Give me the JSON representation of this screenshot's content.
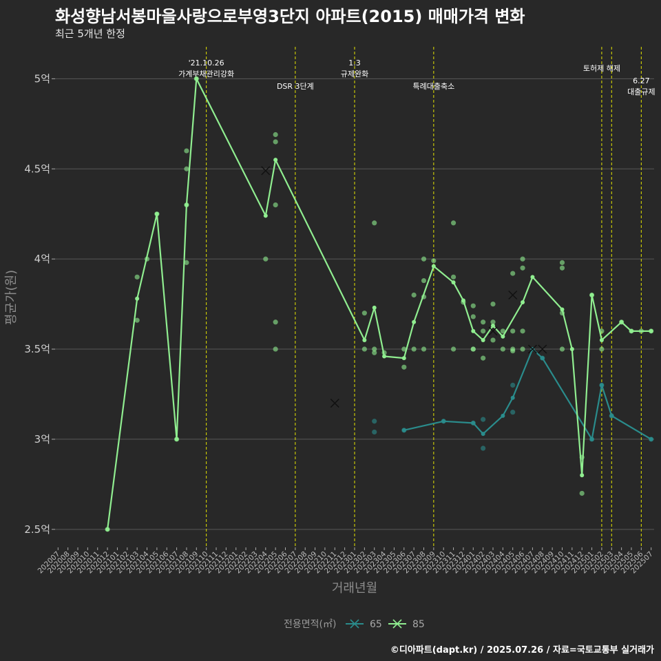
{
  "header": {
    "title": "화성향남서봉마을사랑으로부영3단지 아파트(2015) 매매가격 변화",
    "subtitle": "최근 5개년 한정"
  },
  "footer": {
    "caption": "©디아파트(dapt.kr) / 2025.07.26 / 자료=국토교통부 실거래가"
  },
  "colors": {
    "background": "#282828",
    "grid": "#595959",
    "event_line": "#e6e600",
    "s65": "#2a8c8c",
    "s85": "#90ee90"
  },
  "chart_data": {
    "type": "line",
    "xlabel": "거래년월",
    "ylabel": "평균가(원)",
    "ylim": [
      2.4,
      5.2
    ],
    "y_ticks": [
      {
        "value": 2.5,
        "label": "2.5억"
      },
      {
        "value": 3.0,
        "label": "3억"
      },
      {
        "value": 3.5,
        "label": "3.5억"
      },
      {
        "value": 4.0,
        "label": "4억"
      },
      {
        "value": 4.5,
        "label": "4.5억"
      },
      {
        "value": 5.0,
        "label": "5억"
      }
    ],
    "months": [
      "202007",
      "202008",
      "202009",
      "202010",
      "202011",
      "202012",
      "202101",
      "202102",
      "202103",
      "202104",
      "202105",
      "202106",
      "202107",
      "202108",
      "202109",
      "202110",
      "202111",
      "202112",
      "202201",
      "202202",
      "202203",
      "202204",
      "202205",
      "202206",
      "202207",
      "202208",
      "202209",
      "202210",
      "202211",
      "202212",
      "202301",
      "202302",
      "202303",
      "202304",
      "202305",
      "202306",
      "202307",
      "202308",
      "202309",
      "202310",
      "202311",
      "202312",
      "202401",
      "202402",
      "202403",
      "202404",
      "202405",
      "202406",
      "202407",
      "202408",
      "202409",
      "202410",
      "202411",
      "202412",
      "202501",
      "202502",
      "202503",
      "202504",
      "202505",
      "202506",
      "202507"
    ],
    "events": [
      {
        "month": "202110",
        "text": [
          "'21.10.26",
          "가계부채관리강화"
        ],
        "pos": "high"
      },
      {
        "month": "202207",
        "text": [
          "DSR 3단계"
        ],
        "pos": "low"
      },
      {
        "month": "202301",
        "text": [
          "1.3",
          "규제완화"
        ],
        "pos": "high"
      },
      {
        "month": "202309",
        "text": [
          "특례대출축소"
        ],
        "pos": "low"
      },
      {
        "month": "202502",
        "text": [
          "토허제 해제"
        ],
        "pos": "mid"
      },
      {
        "month": "202503",
        "text": [],
        "pos": "mid"
      },
      {
        "month": "202506",
        "text": [
          "6.27",
          "대출규제"
        ],
        "pos": "low2"
      }
    ],
    "legend": {
      "title": "전용면적(㎡)",
      "items": [
        "65",
        "85"
      ]
    },
    "series": [
      {
        "name": "65",
        "line": [
          {
            "x": 35.0,
            "y": 3.05
          },
          {
            "x": 39.0,
            "y": 3.1
          },
          {
            "x": 42.0,
            "y": 3.09
          },
          {
            "x": 43.0,
            "y": 3.03
          },
          {
            "x": 45.0,
            "y": 3.13
          },
          {
            "x": 46.0,
            "y": 3.23
          },
          {
            "x": 48.0,
            "y": 3.5
          },
          {
            "x": 49.0,
            "y": 3.45
          },
          {
            "x": 54.0,
            "y": 3.0
          },
          {
            "x": 55.0,
            "y": 3.3
          },
          {
            "x": 56.0,
            "y": 3.13
          },
          {
            "x": 60.0,
            "y": 3.0
          }
        ],
        "points": [
          {
            "x": 32.0,
            "y": 3.1
          },
          {
            "x": 32.0,
            "y": 3.04
          },
          {
            "x": 35.0,
            "y": 3.05
          },
          {
            "x": 39.0,
            "y": 3.1
          },
          {
            "x": 42.0,
            "y": 3.09
          },
          {
            "x": 43.0,
            "y": 3.11
          },
          {
            "x": 43.0,
            "y": 2.95
          },
          {
            "x": 46.0,
            "y": 3.3
          },
          {
            "x": 46.0,
            "y": 3.15
          },
          {
            "x": 49.0,
            "y": 3.45
          },
          {
            "x": 54.0,
            "y": 3.0
          },
          {
            "x": 55.0,
            "y": 3.3
          },
          {
            "x": 56.0,
            "y": 3.13
          },
          {
            "x": 60.0,
            "y": 3.0
          }
        ],
        "crosses": [
          {
            "x": 28.0,
            "y": 3.2
          }
        ]
      },
      {
        "name": "85",
        "line": [
          {
            "x": 5.0,
            "y": 2.5
          },
          {
            "x": 8.0,
            "y": 3.78
          },
          {
            "x": 10.0,
            "y": 4.25
          },
          {
            "x": 12.0,
            "y": 3.0
          },
          {
            "x": 13.0,
            "y": 4.3
          },
          {
            "x": 14.0,
            "y": 5.0
          },
          {
            "x": 21.0,
            "y": 4.24
          },
          {
            "x": 22.0,
            "y": 4.55
          },
          {
            "x": 31.0,
            "y": 3.55
          },
          {
            "x": 32.0,
            "y": 3.73
          },
          {
            "x": 33.0,
            "y": 3.46
          },
          {
            "x": 35.0,
            "y": 3.45
          },
          {
            "x": 36.0,
            "y": 3.65
          },
          {
            "x": 38.0,
            "y": 3.96
          },
          {
            "x": 40.0,
            "y": 3.87
          },
          {
            "x": 41.0,
            "y": 3.77
          },
          {
            "x": 42.0,
            "y": 3.6
          },
          {
            "x": 43.0,
            "y": 3.55
          },
          {
            "x": 44.0,
            "y": 3.63
          },
          {
            "x": 45.0,
            "y": 3.57
          },
          {
            "x": 47.0,
            "y": 3.76
          },
          {
            "x": 48.0,
            "y": 3.9
          },
          {
            "x": 51.0,
            "y": 3.72
          },
          {
            "x": 52.0,
            "y": 3.5
          },
          {
            "x": 53.0,
            "y": 2.8
          },
          {
            "x": 54.0,
            "y": 3.8
          },
          {
            "x": 55.0,
            "y": 3.55
          },
          {
            "x": 57.0,
            "y": 3.65
          },
          {
            "x": 58.0,
            "y": 3.6
          },
          {
            "x": 60.0,
            "y": 3.6
          }
        ],
        "points": [
          {
            "x": 5.0,
            "y": 2.5
          },
          {
            "x": 8.0,
            "y": 3.9
          },
          {
            "x": 8.0,
            "y": 3.66
          },
          {
            "x": 9.0,
            "y": 4.0
          },
          {
            "x": 10.0,
            "y": 4.25
          },
          {
            "x": 12.0,
            "y": 3.0
          },
          {
            "x": 13.0,
            "y": 4.6
          },
          {
            "x": 13.0,
            "y": 4.5
          },
          {
            "x": 13.0,
            "y": 4.3
          },
          {
            "x": 13.0,
            "y": 3.98
          },
          {
            "x": 14.0,
            "y": 5.0
          },
          {
            "x": 21.0,
            "y": 4.0
          },
          {
            "x": 22.0,
            "y": 4.69
          },
          {
            "x": 22.0,
            "y": 4.65
          },
          {
            "x": 22.0,
            "y": 4.3
          },
          {
            "x": 22.0,
            "y": 3.65
          },
          {
            "x": 22.0,
            "y": 3.5
          },
          {
            "x": 31.0,
            "y": 3.7
          },
          {
            "x": 31.0,
            "y": 3.5
          },
          {
            "x": 32.0,
            "y": 4.2
          },
          {
            "x": 32.0,
            "y": 3.5
          },
          {
            "x": 32.0,
            "y": 3.48
          },
          {
            "x": 33.0,
            "y": 3.48
          },
          {
            "x": 35.0,
            "y": 3.5
          },
          {
            "x": 35.0,
            "y": 3.4
          },
          {
            "x": 36.0,
            "y": 3.8
          },
          {
            "x": 36.0,
            "y": 3.5
          },
          {
            "x": 37.0,
            "y": 4.0
          },
          {
            "x": 37.0,
            "y": 3.88
          },
          {
            "x": 37.0,
            "y": 3.79
          },
          {
            "x": 37.0,
            "y": 3.5
          },
          {
            "x": 38.0,
            "y": 3.99
          },
          {
            "x": 40.0,
            "y": 4.2
          },
          {
            "x": 40.0,
            "y": 3.9
          },
          {
            "x": 40.0,
            "y": 3.5
          },
          {
            "x": 41.0,
            "y": 3.76
          },
          {
            "x": 42.0,
            "y": 3.74
          },
          {
            "x": 42.0,
            "y": 3.68
          },
          {
            "x": 42.0,
            "y": 3.5
          },
          {
            "x": 42.0,
            "y": 3.5
          },
          {
            "x": 43.0,
            "y": 3.65
          },
          {
            "x": 43.0,
            "y": 3.6
          },
          {
            "x": 43.0,
            "y": 3.45
          },
          {
            "x": 44.0,
            "y": 3.75
          },
          {
            "x": 44.0,
            "y": 3.65
          },
          {
            "x": 44.0,
            "y": 3.55
          },
          {
            "x": 45.0,
            "y": 3.6
          },
          {
            "x": 45.0,
            "y": 3.5
          },
          {
            "x": 46.0,
            "y": 3.92
          },
          {
            "x": 46.0,
            "y": 3.6
          },
          {
            "x": 46.0,
            "y": 3.5
          },
          {
            "x": 46.0,
            "y": 3.49
          },
          {
            "x": 47.0,
            "y": 4.0
          },
          {
            "x": 47.0,
            "y": 3.95
          },
          {
            "x": 47.0,
            "y": 3.6
          },
          {
            "x": 47.0,
            "y": 3.5
          },
          {
            "x": 51.0,
            "y": 3.98
          },
          {
            "x": 51.0,
            "y": 3.95
          },
          {
            "x": 51.0,
            "y": 3.7
          },
          {
            "x": 51.0,
            "y": 3.5
          },
          {
            "x": 53.0,
            "y": 2.9
          },
          {
            "x": 53.0,
            "y": 2.7
          },
          {
            "x": 54.0,
            "y": 3.8
          },
          {
            "x": 55.0,
            "y": 3.6
          },
          {
            "x": 55.0,
            "y": 3.5
          },
          {
            "x": 57.0,
            "y": 3.65
          },
          {
            "x": 58.0,
            "y": 3.6
          },
          {
            "x": 59.0,
            "y": 3.6
          },
          {
            "x": 60.0,
            "y": 3.6
          }
        ],
        "crosses": [
          {
            "x": 21.0,
            "y": 4.49
          },
          {
            "x": 44.0,
            "y": 3.6
          },
          {
            "x": 46.0,
            "y": 3.8
          },
          {
            "x": 48.0,
            "y": 3.5
          },
          {
            "x": 49.0,
            "y": 3.5
          }
        ]
      }
    ]
  }
}
